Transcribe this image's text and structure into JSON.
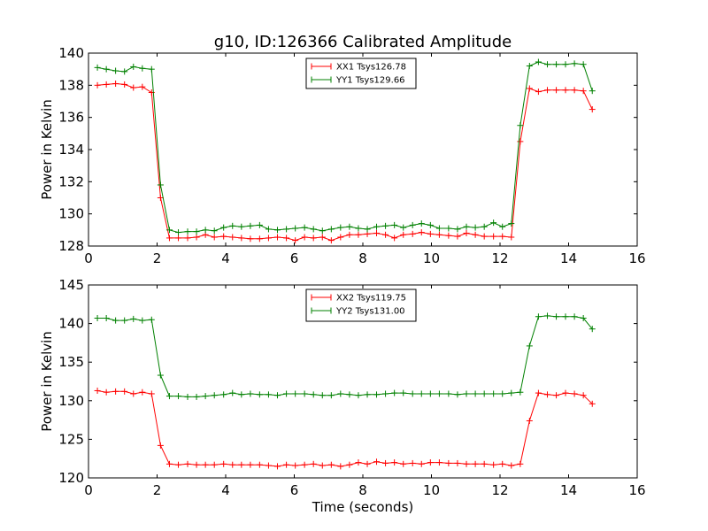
{
  "figure_title": "g10, ID:126366 Calibrated Amplitude",
  "chart_data": [
    {
      "type": "line",
      "title": "g10, ID:126366 Calibrated Amplitude",
      "xlabel": "",
      "ylabel": "Power in Kelvin",
      "xlim": [
        0,
        16
      ],
      "ylim": [
        128,
        140
      ],
      "xticks": [
        "0",
        "2",
        "4",
        "6",
        "8",
        "10",
        "12",
        "14",
        "16"
      ],
      "yticks": [
        "128",
        "130",
        "132",
        "134",
        "136",
        "138",
        "140"
      ],
      "grid": false,
      "legend_position": "top-center",
      "x": [
        0.26,
        0.52,
        0.79,
        1.05,
        1.31,
        1.57,
        1.84,
        2.1,
        2.36,
        2.62,
        2.89,
        3.15,
        3.41,
        3.67,
        3.94,
        4.2,
        4.46,
        4.72,
        4.99,
        5.25,
        5.51,
        5.77,
        6.03,
        6.3,
        6.56,
        6.82,
        7.08,
        7.35,
        7.61,
        7.87,
        8.13,
        8.4,
        8.66,
        8.92,
        9.18,
        9.45,
        9.71,
        9.97,
        10.23,
        10.5,
        10.76,
        11.02,
        11.28,
        11.54,
        11.81,
        12.07,
        12.33,
        12.59,
        12.86,
        13.12,
        13.38,
        13.64,
        13.91,
        14.17,
        14.43,
        14.69
      ],
      "series": [
        {
          "name": "XX1 Tsys126.78",
          "color": "#ff0000",
          "values": [
            138.0,
            138.05,
            138.1,
            138.05,
            137.85,
            137.9,
            137.55,
            131.0,
            128.5,
            128.5,
            128.5,
            128.55,
            128.7,
            128.55,
            128.6,
            128.55,
            128.5,
            128.45,
            128.45,
            128.5,
            128.55,
            128.5,
            128.35,
            128.55,
            128.5,
            128.55,
            128.35,
            128.55,
            128.7,
            128.7,
            128.75,
            128.8,
            128.7,
            128.5,
            128.7,
            128.75,
            128.85,
            128.75,
            128.7,
            128.65,
            128.6,
            128.8,
            128.7,
            128.6,
            128.6,
            128.6,
            128.55,
            134.5,
            137.8,
            137.6,
            137.7,
            137.7,
            137.7,
            137.7,
            137.65,
            136.5
          ]
        },
        {
          "name": "YY1 Tsys129.66",
          "color": "#008000",
          "values": [
            139.1,
            139.0,
            138.9,
            138.85,
            139.15,
            139.05,
            139.0,
            131.8,
            129.0,
            128.85,
            128.9,
            128.9,
            129.0,
            128.95,
            129.15,
            129.25,
            129.2,
            129.25,
            129.3,
            129.05,
            129.0,
            129.05,
            129.1,
            129.15,
            129.05,
            128.95,
            129.05,
            129.15,
            129.2,
            129.1,
            129.05,
            129.2,
            129.25,
            129.3,
            129.15,
            129.3,
            129.4,
            129.3,
            129.1,
            129.1,
            129.05,
            129.2,
            129.15,
            129.2,
            129.45,
            129.2,
            129.4,
            135.5,
            139.2,
            139.45,
            139.3,
            139.3,
            139.3,
            139.35,
            139.3,
            137.65
          ]
        }
      ]
    },
    {
      "type": "line",
      "title": "",
      "xlabel": "Time (seconds)",
      "ylabel": "Power in Kelvin",
      "xlim": [
        0,
        16
      ],
      "ylim": [
        120,
        145
      ],
      "xticks": [
        "0",
        "2",
        "4",
        "6",
        "8",
        "10",
        "12",
        "14",
        "16"
      ],
      "yticks": [
        "120",
        "125",
        "130",
        "135",
        "140",
        "145"
      ],
      "grid": false,
      "legend_position": "top-center",
      "x": [
        0.26,
        0.52,
        0.79,
        1.05,
        1.31,
        1.57,
        1.84,
        2.1,
        2.36,
        2.62,
        2.89,
        3.15,
        3.41,
        3.67,
        3.94,
        4.2,
        4.46,
        4.72,
        4.99,
        5.25,
        5.51,
        5.77,
        6.03,
        6.3,
        6.56,
        6.82,
        7.08,
        7.35,
        7.61,
        7.87,
        8.13,
        8.4,
        8.66,
        8.92,
        9.18,
        9.45,
        9.71,
        9.97,
        10.23,
        10.5,
        10.76,
        11.02,
        11.28,
        11.54,
        11.81,
        12.07,
        12.33,
        12.59,
        12.86,
        13.12,
        13.38,
        13.64,
        13.91,
        14.17,
        14.43,
        14.69
      ],
      "series": [
        {
          "name": "XX2 Tsys119.75",
          "color": "#ff0000",
          "values": [
            131.3,
            131.1,
            131.2,
            131.2,
            130.9,
            131.1,
            130.9,
            124.2,
            121.8,
            121.7,
            121.8,
            121.7,
            121.7,
            121.7,
            121.8,
            121.7,
            121.7,
            121.7,
            121.7,
            121.6,
            121.5,
            121.7,
            121.6,
            121.7,
            121.8,
            121.6,
            121.7,
            121.5,
            121.7,
            122.0,
            121.8,
            122.1,
            121.9,
            122.0,
            121.8,
            121.9,
            121.8,
            122.0,
            122.0,
            121.9,
            121.9,
            121.8,
            121.8,
            121.8,
            121.7,
            121.8,
            121.6,
            121.8,
            127.4,
            131.0,
            130.8,
            130.7,
            131.0,
            130.9,
            130.7,
            129.6
          ]
        },
        {
          "name": "YY2 Tsys131.00",
          "color": "#008000",
          "values": [
            140.7,
            140.7,
            140.4,
            140.4,
            140.6,
            140.4,
            140.5,
            133.3,
            130.6,
            130.6,
            130.5,
            130.5,
            130.6,
            130.7,
            130.8,
            131.0,
            130.8,
            130.9,
            130.8,
            130.8,
            130.7,
            130.9,
            130.9,
            130.9,
            130.8,
            130.7,
            130.7,
            130.9,
            130.8,
            130.7,
            130.8,
            130.8,
            130.9,
            131.0,
            131.0,
            130.9,
            130.9,
            130.9,
            130.9,
            130.9,
            130.8,
            130.9,
            130.9,
            130.9,
            130.9,
            130.9,
            131.0,
            131.1,
            137.1,
            140.9,
            141.0,
            140.9,
            140.9,
            140.9,
            140.7,
            139.3
          ]
        }
      ]
    }
  ]
}
